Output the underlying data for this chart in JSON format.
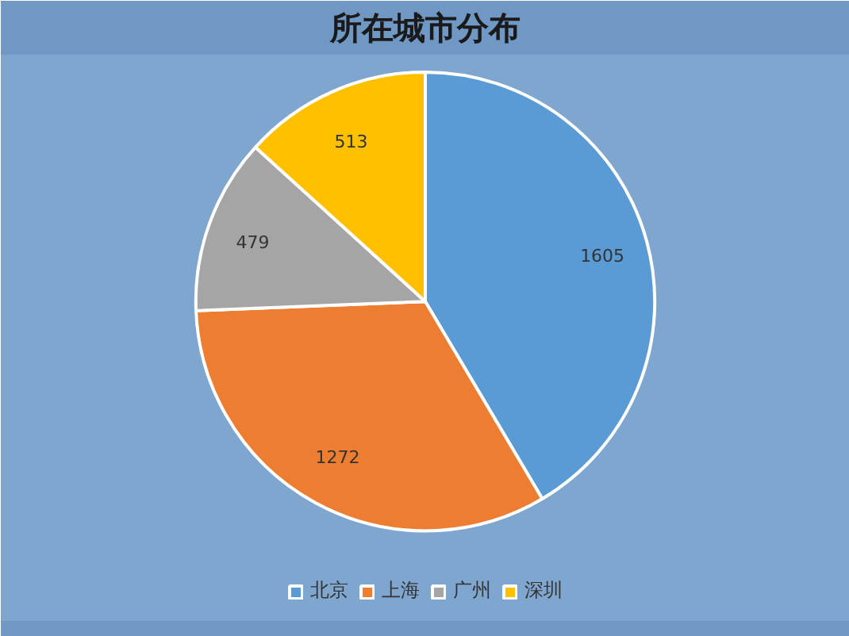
{
  "chart_data": {
    "type": "pie",
    "title": "所在城市分布",
    "categories": [
      "北京",
      "上海",
      "广州",
      "深圳"
    ],
    "values": [
      1605,
      1272,
      479,
      513
    ],
    "colors": [
      "#5b9bd5",
      "#ed7d31",
      "#a5a5a5",
      "#ffc000"
    ],
    "data_labels": true,
    "legend": "bottom"
  }
}
